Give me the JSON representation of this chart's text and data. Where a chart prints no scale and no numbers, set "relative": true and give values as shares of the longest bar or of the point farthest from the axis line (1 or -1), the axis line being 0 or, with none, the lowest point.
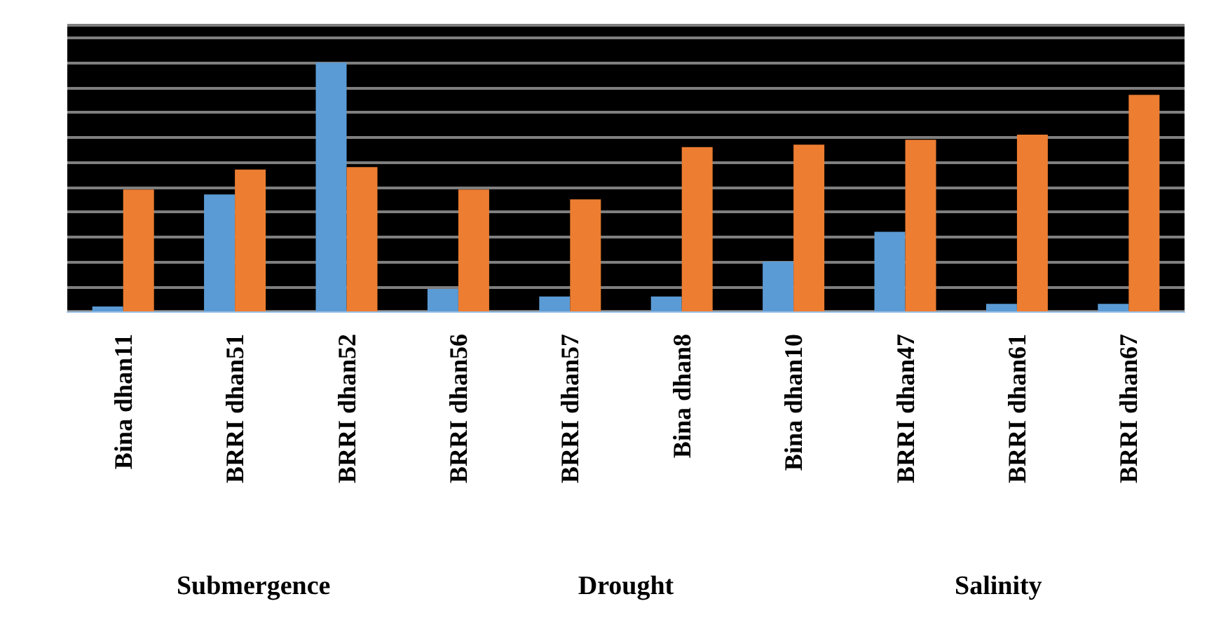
{
  "chart_data": {
    "type": "bar",
    "relative": true,
    "grid": "y",
    "categories": [
      "Bina dhan11",
      "BRRI dhan51",
      "BRRI dhan52",
      "BRRI dhan56",
      "BRRI dhan57",
      "Bina dhan8",
      "Bina dhan10",
      "BRRI dhan47",
      "BRRI dhan61",
      "BRRI dhan67"
    ],
    "series": [
      {
        "color": "#5b9bd5",
        "values": [
          0.02,
          0.47,
          1,
          0.09,
          0.06,
          0.06,
          0.2,
          0.32,
          0.03,
          0.03
        ]
      },
      {
        "color": "#ed7d31",
        "values": [
          0.49,
          0.57,
          0.58,
          0.49,
          0.45,
          0.66,
          0.67,
          0.69,
          0.71,
          0.87
        ]
      }
    ],
    "annotations": [
      "Submergence",
      "Drought",
      "Salinity"
    ]
  }
}
